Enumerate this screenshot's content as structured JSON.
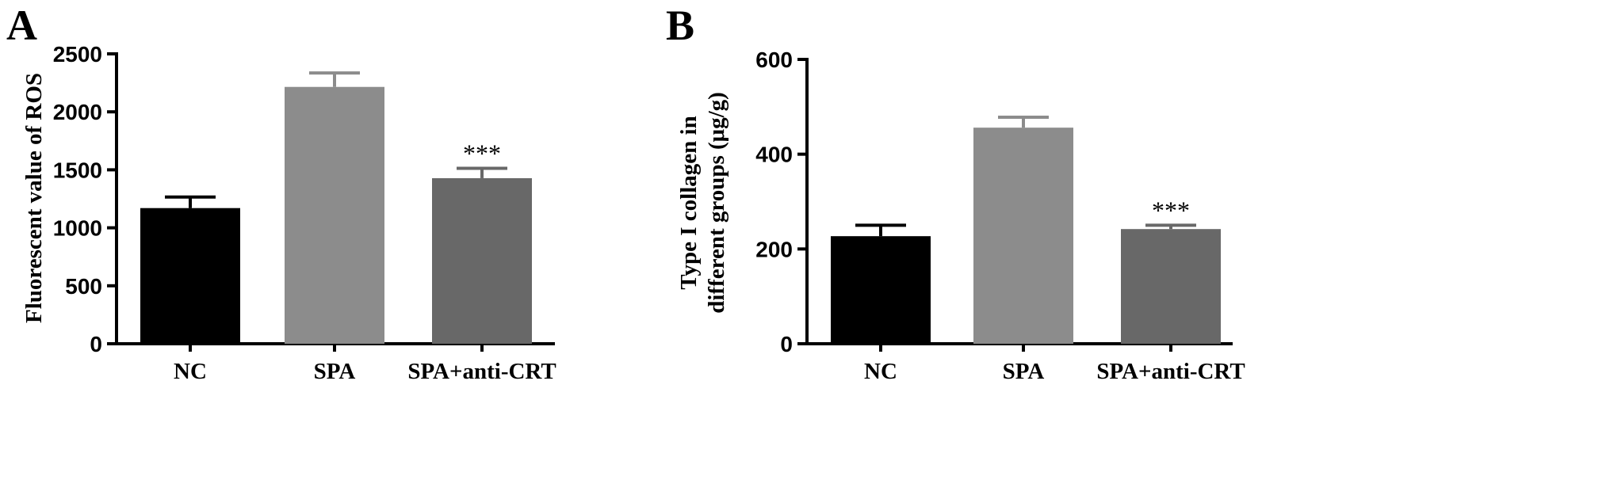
{
  "colors": {
    "NC": "#000000",
    "SPA": "#8c8c8c",
    "SPA+anti-CRT": "#686868"
  },
  "chart_data": [
    {
      "panel": "A",
      "type": "bar",
      "categories": [
        "NC",
        "SPA",
        "SPA+anti-CRT"
      ],
      "values": [
        1170,
        2215,
        1428
      ],
      "errors": [
        95,
        120,
        85
      ],
      "significance": [
        "",
        "",
        "***"
      ],
      "ylabel": "Fluorescent value of ROS",
      "xlabel": "",
      "ylim": [
        0,
        2500
      ],
      "yticks": [
        0,
        500,
        1000,
        1500,
        2000,
        2500
      ]
    },
    {
      "panel": "B",
      "type": "bar",
      "categories": [
        "NC",
        "SPA",
        "SPA+anti-CRT"
      ],
      "values": [
        227,
        456,
        242
      ],
      "errors": [
        23,
        22,
        8
      ],
      "significance": [
        "",
        "",
        "***"
      ],
      "ylabel": [
        "Type I collagen in",
        "different groups (μg/g)"
      ],
      "xlabel": "",
      "ylim": [
        0,
        600
      ],
      "yticks": [
        0,
        200,
        400,
        600
      ]
    }
  ]
}
